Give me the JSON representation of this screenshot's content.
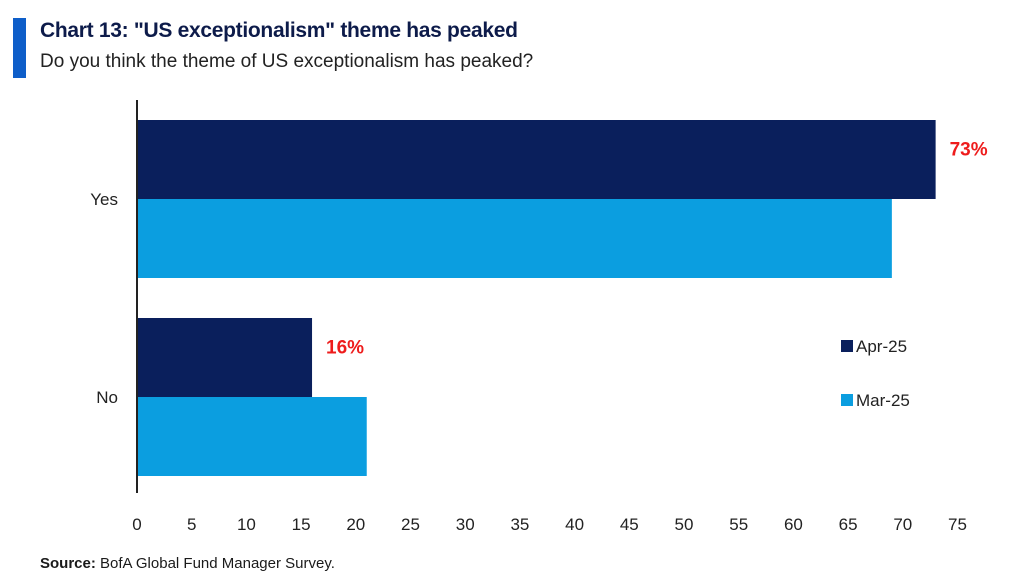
{
  "header": {
    "title": "Chart 13: \"US exceptionalism\" theme has peaked",
    "subtitle": "Do you think the theme of US exceptionalism has peaked?"
  },
  "footer": {
    "source_label": "Source:",
    "source_text": " BofA Global Fund Manager Survey."
  },
  "colors": {
    "accent": "#0e5ec9",
    "apr25": "#0a1f5c",
    "mar25": "#0b9ee0",
    "highlight": "#ee1c1c",
    "axis": "#222222"
  },
  "chart_data": {
    "type": "bar",
    "orientation": "horizontal",
    "categories": [
      "Yes",
      "No"
    ],
    "series": [
      {
        "name": "Apr-25",
        "values": [
          73,
          16
        ]
      },
      {
        "name": "Mar-25",
        "values": [
          69,
          21
        ]
      }
    ],
    "data_labels": [
      {
        "series": "Apr-25",
        "category": "Yes",
        "text": "73%"
      },
      {
        "series": "Apr-25",
        "category": "No",
        "text": "16%"
      }
    ],
    "xlim": [
      0,
      75
    ],
    "xticks": [
      0,
      5,
      10,
      15,
      20,
      25,
      30,
      35,
      40,
      45,
      50,
      55,
      60,
      65,
      70,
      75
    ],
    "grid": false,
    "legend_position": "right"
  }
}
